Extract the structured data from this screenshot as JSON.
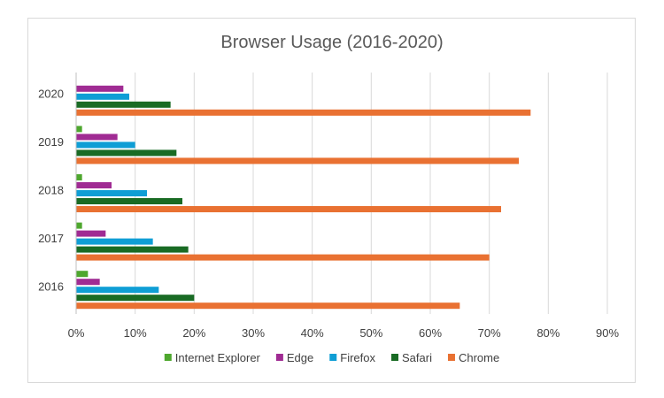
{
  "chart_data": {
    "type": "bar",
    "orientation": "horizontal",
    "title": "Browser Usage (2016-2020)",
    "xlabel": "",
    "ylabel": "",
    "categories": [
      "2016",
      "2017",
      "2018",
      "2019",
      "2020"
    ],
    "xlim": [
      0,
      0.9
    ],
    "x_ticks": [
      "0%",
      "10%",
      "20%",
      "30%",
      "40%",
      "50%",
      "60%",
      "70%",
      "80%",
      "90%"
    ],
    "grid": "vertical",
    "legend_position": "bottom",
    "series": [
      {
        "name": "Internet Explorer",
        "color": "#4ea72e",
        "values": [
          0.02,
          0.01,
          0.01,
          0.01,
          0.0
        ]
      },
      {
        "name": "Edge",
        "color": "#a02b93",
        "values": [
          0.04,
          0.05,
          0.06,
          0.07,
          0.08
        ]
      },
      {
        "name": "Firefox",
        "color": "#0f9ed5",
        "values": [
          0.14,
          0.13,
          0.12,
          0.1,
          0.09
        ]
      },
      {
        "name": "Safari",
        "color": "#196b24",
        "values": [
          0.2,
          0.19,
          0.18,
          0.17,
          0.16
        ]
      },
      {
        "name": "Chrome",
        "color": "#e97132",
        "values": [
          0.65,
          0.7,
          0.72,
          0.75,
          0.77
        ]
      }
    ]
  }
}
